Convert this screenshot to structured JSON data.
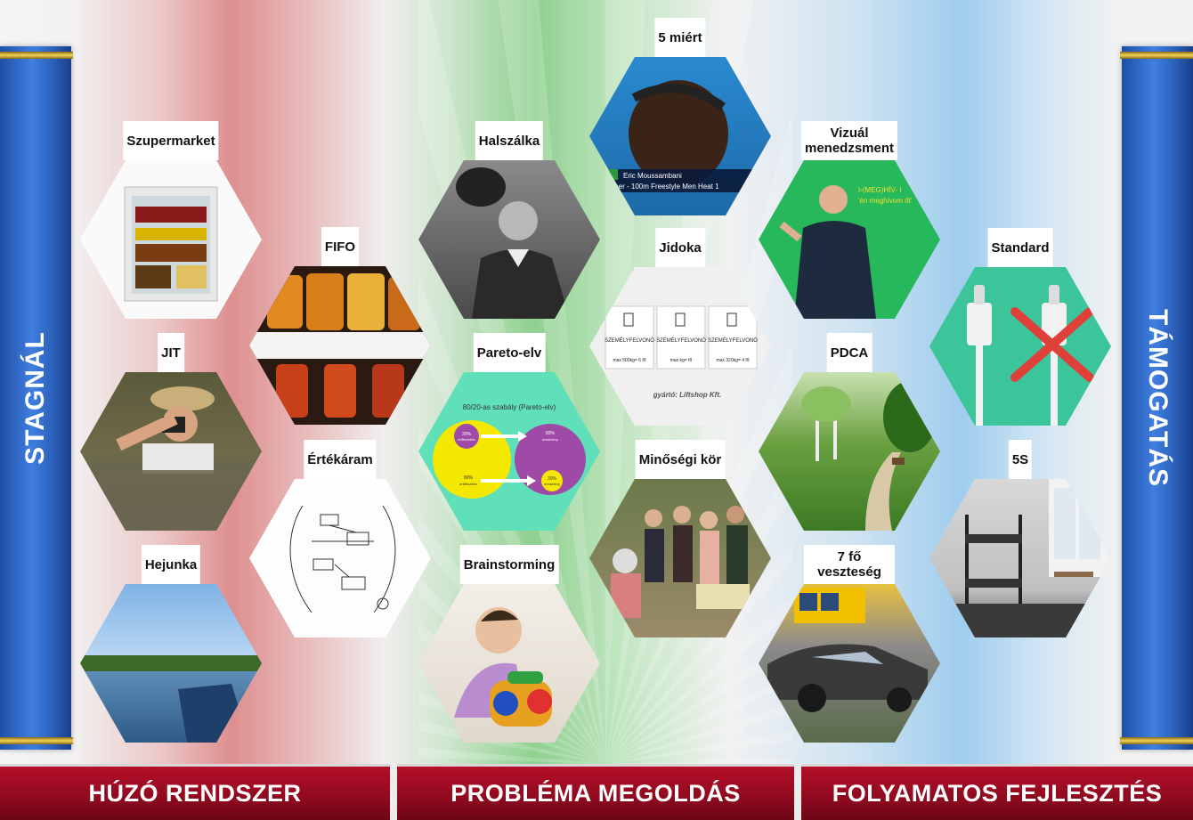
{
  "pillars": {
    "left": "STAGNÁL",
    "right": "TÁMOGATÁS"
  },
  "footer": {
    "left": "HÚZÓ RENDSZER",
    "middle": "PROBLÉMA MEGOLDÁS",
    "right": "FOLYAMATOS FEJLESZTÉS"
  },
  "tiles": {
    "szupermarket": "Szupermarket",
    "jit": "JIT",
    "hejunka": "Hejunka",
    "fifo": "FIFO",
    "ertekaram": "Értékáram",
    "halszalka": "Halszálka",
    "pareto": "Pareto-elv",
    "brainstorming": "Brainstorming",
    "otmiert": "5 miért",
    "jidoka": "Jidoka",
    "minosegi_kor": "Minőségi kör",
    "vizualis": "Vizuál\nmenedzsment",
    "pdca": "PDCA",
    "hetfo": "7 fő veszteség",
    "standard": "Standard",
    "otS": "5S"
  },
  "image_text": {
    "pareto_title": "80/20-as szabály (Pareto-elv)",
    "pareto_a1": "20%",
    "pareto_a2": "erőfeszítés",
    "pareto_b1": "80%",
    "pareto_b2": "eredmény",
    "pareto_c1": "80%",
    "pareto_c2": "erőfeszítés",
    "pareto_d1": "20%",
    "pareto_d2": "eredmény",
    "swim_name": "Eric Moussambani",
    "swim_event": "inner - 100m Freestyle Men Heat 1",
    "jidoka_label1": "SZEMÉLYFELVONÓ",
    "jidoka_label2": "SZEMÉLYFELVONÓ",
    "jidoka_label3": "SZEMÉLYFELVONÓ",
    "jidoka_max1": "max 500kg= 6 fő",
    "jidoka_max2": "max    kg=   fő",
    "jidoka_max3": "max 320kg= 4 fő",
    "jidoka_maker": "gyártó: Liftshop Kft.",
    "vizual_line1": "I-(MEG)HÍV- I",
    "vizual_line2": "'én meghívom őt'"
  },
  "colors": {
    "footer": "#9e0d24",
    "pillar": "#2f6cd0",
    "pareto_bg": "#5fe0b8",
    "pareto_yellow": "#f5e800",
    "pareto_purple": "#a04aa8",
    "standard_bg": "#3cc49a",
    "vizual_bg": "#28b85c"
  }
}
